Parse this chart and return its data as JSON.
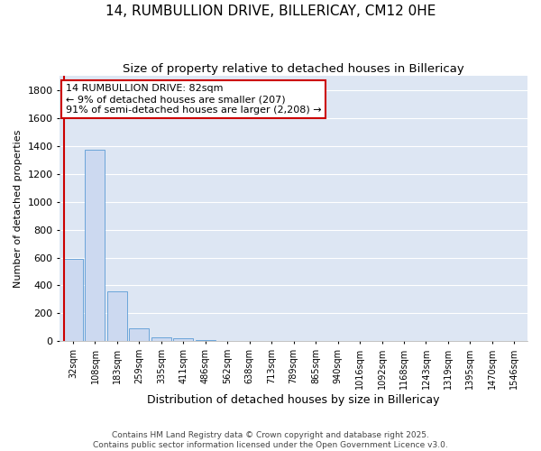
{
  "title": "14, RUMBULLION DRIVE, BILLERICAY, CM12 0HE",
  "subtitle": "Size of property relative to detached houses in Billericay",
  "xlabel": "Distribution of detached houses by size in Billericay",
  "ylabel": "Number of detached properties",
  "categories": [
    "32sqm",
    "108sqm",
    "183sqm",
    "259sqm",
    "335sqm",
    "411sqm",
    "486sqm",
    "562sqm",
    "638sqm",
    "713sqm",
    "789sqm",
    "865sqm",
    "940sqm",
    "1016sqm",
    "1092sqm",
    "1168sqm",
    "1243sqm",
    "1319sqm",
    "1395sqm",
    "1470sqm",
    "1546sqm"
  ],
  "values": [
    590,
    1370,
    355,
    90,
    30,
    20,
    10,
    4,
    2,
    1,
    1,
    1,
    0,
    0,
    0,
    0,
    0,
    0,
    0,
    0,
    0
  ],
  "bar_color": "#ccd9f0",
  "bar_edge_color": "#5b9bd5",
  "annotation_text_line1": "14 RUMBULLION DRIVE: 82sqm",
  "annotation_text_line2": "← 9% of detached houses are smaller (207)",
  "annotation_text_line3": "91% of semi-detached houses are larger (2,208) →",
  "annotation_box_color": "#ffffff",
  "annotation_box_edge": "#cc0000",
  "vline_color": "#cc0000",
  "vline_x": -0.42,
  "ylim": [
    0,
    1900
  ],
  "background_color": "#ffffff",
  "plot_background": "#dde6f3",
  "grid_color": "#ffffff",
  "footer_line1": "Contains HM Land Registry data © Crown copyright and database right 2025.",
  "footer_line2": "Contains public sector information licensed under the Open Government Licence v3.0.",
  "title_fontsize": 11,
  "subtitle_fontsize": 9.5,
  "xlabel_fontsize": 9,
  "ylabel_fontsize": 8,
  "tick_fontsize": 7,
  "annotation_fontsize": 8,
  "footer_fontsize": 6.5
}
